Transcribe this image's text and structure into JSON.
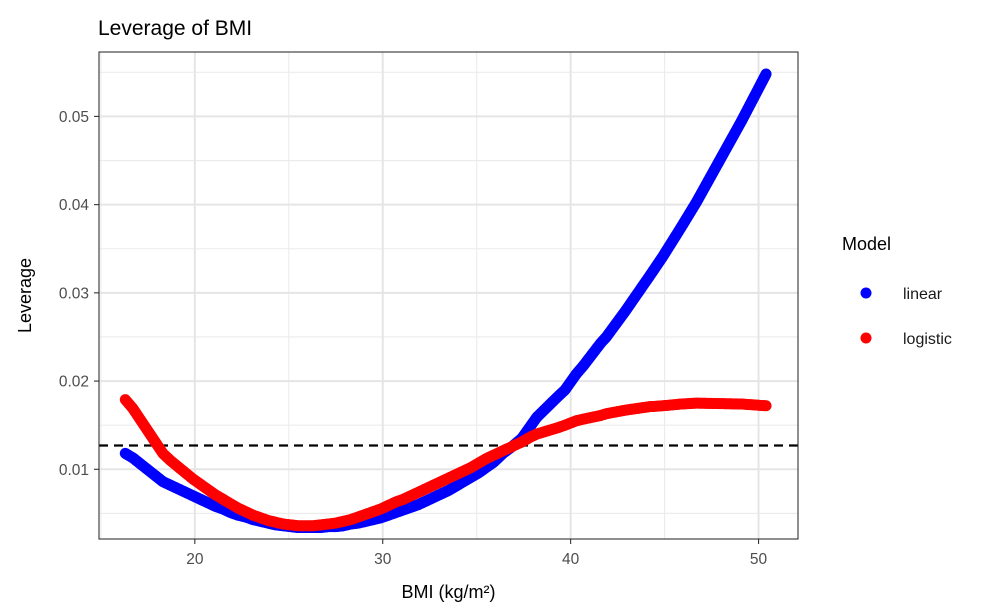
{
  "chart_data": {
    "type": "scatter",
    "title": "Leverage of BMI",
    "xlabel": "BMI (kg/m²)",
    "ylabel": "Leverage",
    "xlim": [
      14.9,
      52.1
    ],
    "ylim": [
      0.0021,
      0.0573
    ],
    "x_ticks": [
      20,
      30,
      40,
      50
    ],
    "y_ticks": [
      0.01,
      0.02,
      0.03,
      0.04,
      0.05
    ],
    "x_tick_labels": [
      "20",
      "30",
      "40",
      "50"
    ],
    "y_tick_labels": [
      "0.01",
      "0.02",
      "0.03",
      "0.04",
      "0.05"
    ],
    "grid": true,
    "reference_line": {
      "y": 0.0127,
      "style": "dashed",
      "color": "#000000"
    },
    "legend": {
      "title": "Model",
      "position": "right"
    },
    "series": [
      {
        "name": "linear",
        "color": "#0000FF",
        "points": [
          [
            16.3,
            0.0118
          ],
          [
            16.7,
            0.0113
          ],
          [
            18.3,
            0.0086
          ],
          [
            18.7,
            0.0082
          ],
          [
            19.1,
            0.0078
          ],
          [
            19.5,
            0.0074
          ],
          [
            19.9,
            0.007
          ],
          [
            20.3,
            0.0066
          ],
          [
            20.7,
            0.0062
          ],
          [
            21.1,
            0.0058
          ],
          [
            21.5,
            0.0055
          ],
          [
            21.9,
            0.0051
          ],
          [
            22.3,
            0.0048
          ],
          [
            22.7,
            0.0046
          ],
          [
            23.1,
            0.0043
          ],
          [
            23.5,
            0.0041
          ],
          [
            23.9,
            0.0039
          ],
          [
            24.3,
            0.0037
          ],
          [
            24.7,
            0.0036
          ],
          [
            25.1,
            0.0035
          ],
          [
            25.5,
            0.0034
          ],
          [
            25.9,
            0.0034
          ],
          [
            26.3,
            0.0034
          ],
          [
            26.7,
            0.0034
          ],
          [
            27.1,
            0.0035
          ],
          [
            27.5,
            0.0035
          ],
          [
            27.9,
            0.0036
          ],
          [
            28.3,
            0.0038
          ],
          [
            28.7,
            0.0039
          ],
          [
            29.1,
            0.0041
          ],
          [
            29.5,
            0.0043
          ],
          [
            29.9,
            0.0045
          ],
          [
            30.3,
            0.0048
          ],
          [
            30.7,
            0.0051
          ],
          [
            31.1,
            0.0054
          ],
          [
            31.5,
            0.0057
          ],
          [
            31.9,
            0.006
          ],
          [
            32.3,
            0.0064
          ],
          [
            32.7,
            0.0068
          ],
          [
            33.1,
            0.0072
          ],
          [
            33.5,
            0.0076
          ],
          [
            33.9,
            0.0081
          ],
          [
            34.3,
            0.0086
          ],
          [
            34.7,
            0.0091
          ],
          [
            35.1,
            0.0096
          ],
          [
            35.5,
            0.0102
          ],
          [
            35.9,
            0.0108
          ],
          [
            36.4,
            0.0118
          ],
          [
            36.9,
            0.0126
          ],
          [
            37.4,
            0.0135
          ],
          [
            37.9,
            0.015
          ],
          [
            38.2,
            0.0159
          ],
          [
            39.3,
            0.0182
          ],
          [
            39.7,
            0.019
          ],
          [
            40.3,
            0.0208
          ],
          [
            40.7,
            0.0218
          ],
          [
            41.6,
            0.0243
          ],
          [
            41.9,
            0.025
          ],
          [
            42.9,
            0.0279
          ],
          [
            44.2,
            0.0319
          ],
          [
            44.9,
            0.0341
          ],
          [
            45.9,
            0.0375
          ],
          [
            46.7,
            0.0403
          ],
          [
            49.1,
            0.0495
          ],
          [
            50.4,
            0.0548
          ]
        ]
      },
      {
        "name": "logistic",
        "color": "#FF0000",
        "points": [
          [
            16.3,
            0.0179
          ],
          [
            16.7,
            0.0169
          ],
          [
            18.3,
            0.0118
          ],
          [
            18.7,
            0.011
          ],
          [
            19.1,
            0.0103
          ],
          [
            19.5,
            0.0096
          ],
          [
            19.9,
            0.0089
          ],
          [
            20.3,
            0.0083
          ],
          [
            20.7,
            0.0077
          ],
          [
            21.1,
            0.0071
          ],
          [
            21.5,
            0.0066
          ],
          [
            21.9,
            0.0061
          ],
          [
            22.3,
            0.0056
          ],
          [
            22.7,
            0.0052
          ],
          [
            23.1,
            0.0048
          ],
          [
            23.5,
            0.0045
          ],
          [
            23.9,
            0.0042
          ],
          [
            24.3,
            0.004
          ],
          [
            24.7,
            0.0038
          ],
          [
            25.1,
            0.0037
          ],
          [
            25.5,
            0.0036
          ],
          [
            25.9,
            0.0036
          ],
          [
            26.3,
            0.0036
          ],
          [
            26.7,
            0.0037
          ],
          [
            27.1,
            0.0038
          ],
          [
            27.5,
            0.0039
          ],
          [
            27.9,
            0.0041
          ],
          [
            28.3,
            0.0043
          ],
          [
            28.7,
            0.0046
          ],
          [
            29.1,
            0.0049
          ],
          [
            29.5,
            0.0052
          ],
          [
            29.9,
            0.0055
          ],
          [
            30.3,
            0.0059
          ],
          [
            30.7,
            0.0063
          ],
          [
            31.1,
            0.0066
          ],
          [
            31.5,
            0.007
          ],
          [
            31.9,
            0.0074
          ],
          [
            32.3,
            0.0078
          ],
          [
            32.7,
            0.0082
          ],
          [
            33.1,
            0.0086
          ],
          [
            33.5,
            0.009
          ],
          [
            33.9,
            0.0094
          ],
          [
            34.3,
            0.0098
          ],
          [
            34.7,
            0.0102
          ],
          [
            35.1,
            0.0107
          ],
          [
            35.5,
            0.0112
          ],
          [
            35.9,
            0.0116
          ],
          [
            36.4,
            0.0121
          ],
          [
            36.9,
            0.0126
          ],
          [
            37.4,
            0.0131
          ],
          [
            37.9,
            0.0137
          ],
          [
            38.2,
            0.014
          ],
          [
            39.3,
            0.0147
          ],
          [
            39.7,
            0.015
          ],
          [
            40.3,
            0.0155
          ],
          [
            40.7,
            0.0157
          ],
          [
            41.6,
            0.0161
          ],
          [
            41.9,
            0.0163
          ],
          [
            42.9,
            0.0167
          ],
          [
            44.2,
            0.0171
          ],
          [
            44.9,
            0.0172
          ],
          [
            45.9,
            0.0174
          ],
          [
            46.7,
            0.0175
          ],
          [
            49.1,
            0.0174
          ],
          [
            50.4,
            0.0172
          ]
        ]
      }
    ]
  }
}
